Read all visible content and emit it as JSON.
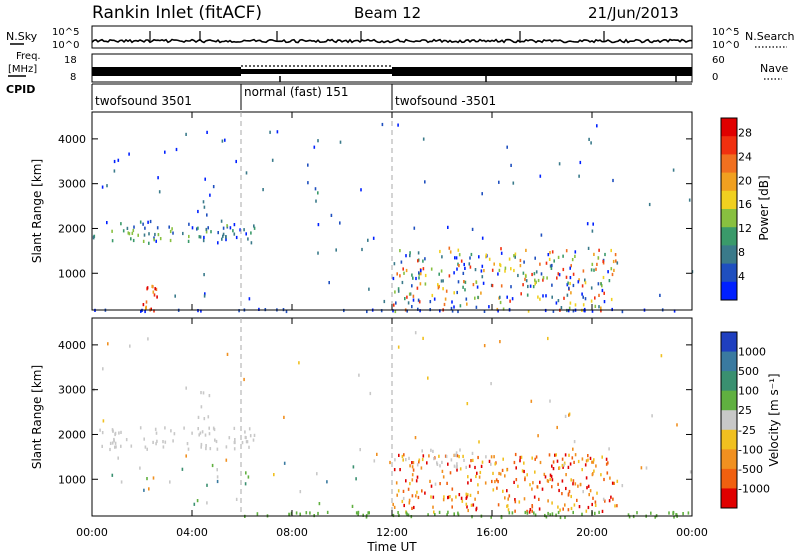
{
  "header": {
    "station": "Rankin Inlet (fitACF)",
    "beam": "Beam 12",
    "date": "21/Jun/2013"
  },
  "summary_labels": {
    "nsky": "N.Sky",
    "freq_line1": "Freq.",
    "freq_line2": "[MHz]",
    "cpid": "CPID",
    "nsearch": "N.Search",
    "nave": "Nave",
    "nsky_ticks": [
      "10^5",
      "10^0"
    ],
    "freq_ticks": [
      "18",
      "8"
    ],
    "nsearch_ticks": [
      "10^5",
      "10^0"
    ],
    "nave_ticks": [
      "60",
      "0"
    ]
  },
  "cpid_segments": [
    {
      "label": "twofsound 3501",
      "start_h": 0,
      "end_h": 6
    },
    {
      "label": "normal (fast) 151",
      "start_h": 6,
      "end_h": 12
    },
    {
      "label": "twofsound -3501",
      "start_h": 12,
      "end_h": 24
    }
  ],
  "x_axis": {
    "label": "Time UT",
    "ticks": [
      "00:00",
      "04:00",
      "08:00",
      "12:00",
      "16:00",
      "20:00",
      "00:00"
    ],
    "range_h": [
      0,
      24
    ]
  },
  "power_panel": {
    "ylabel": "Slant Range [km]",
    "yticks": [
      "1000",
      "2000",
      "3000",
      "4000"
    ],
    "cbar_label": "Power [dB]",
    "cbar_ticks": [
      "4",
      "8",
      "12",
      "16",
      "20",
      "24",
      "28"
    ],
    "cbar_colors": [
      "#0020ff",
      "#1f4fbf",
      "#3a7a8a",
      "#3a9a6a",
      "#88c040",
      "#f0d020",
      "#f0a020",
      "#f07020",
      "#f03010",
      "#e00000"
    ]
  },
  "velocity_panel": {
    "ylabel": "Slant Range [km]",
    "yticks": [
      "1000",
      "2000",
      "3000",
      "4000"
    ],
    "cbar_label": "Velocity [m s⁻¹]",
    "cbar_ticks": [
      "1000",
      "500",
      "100",
      "25",
      "-25",
      "-100",
      "-500",
      "-1000"
    ],
    "cbar_colors": [
      "#1f3fbf",
      "#3a7aa0",
      "#3a9070",
      "#60b040",
      "#c8c8c8",
      "#f0c020",
      "#f09020",
      "#f06010",
      "#e00000"
    ]
  },
  "chart_data": [
    {
      "type": "heatmap",
      "title": "Power",
      "xlabel": "Time UT",
      "ylabel": "Slant Range [km]",
      "xlim": [
        0,
        24
      ],
      "ylim": [
        180,
        4600
      ],
      "colorbar": {
        "label": "Power [dB]",
        "range": [
          0,
          30
        ],
        "ticks": [
          4,
          8,
          12,
          16,
          20,
          24,
          28
        ]
      },
      "scatter_regions": [
        {
          "t_start": 0,
          "t_end": 6.5,
          "r_start": 1700,
          "r_end": 2200,
          "dominant_power": "4-16"
        },
        {
          "t_start": 2.0,
          "t_end": 2.6,
          "r_start": 180,
          "r_end": 800,
          "dominant_power": "20-30"
        },
        {
          "t_start": 12,
          "t_end": 21,
          "r_start": 180,
          "r_end": 1600,
          "dominant_power": "8-28"
        },
        {
          "t_start": 0,
          "t_end": 24,
          "r_start": 180,
          "r_end": 230,
          "dominant_power": "4-8"
        }
      ]
    },
    {
      "type": "heatmap",
      "title": "Velocity",
      "xlabel": "Time UT",
      "ylabel": "Slant Range [km]",
      "xlim": [
        0,
        24
      ],
      "ylim": [
        180,
        4600
      ],
      "colorbar": {
        "label": "Velocity [m s⁻¹]",
        "ticks": [
          1000,
          500,
          100,
          25,
          -25,
          -100,
          -500,
          -1000
        ]
      },
      "scatter_regions": [
        {
          "t_start": 0,
          "t_end": 6.5,
          "r_start": 1700,
          "r_end": 2200,
          "dominant_velocity": "-25 to 25 (ground scatter)"
        },
        {
          "t_start": 12,
          "t_end": 21,
          "r_start": 300,
          "r_end": 1600,
          "dominant_velocity": "-100 to -500"
        },
        {
          "t_start": 6,
          "t_end": 24,
          "r_start": 180,
          "r_end": 300,
          "dominant_velocity": "25 to 100"
        }
      ]
    }
  ]
}
